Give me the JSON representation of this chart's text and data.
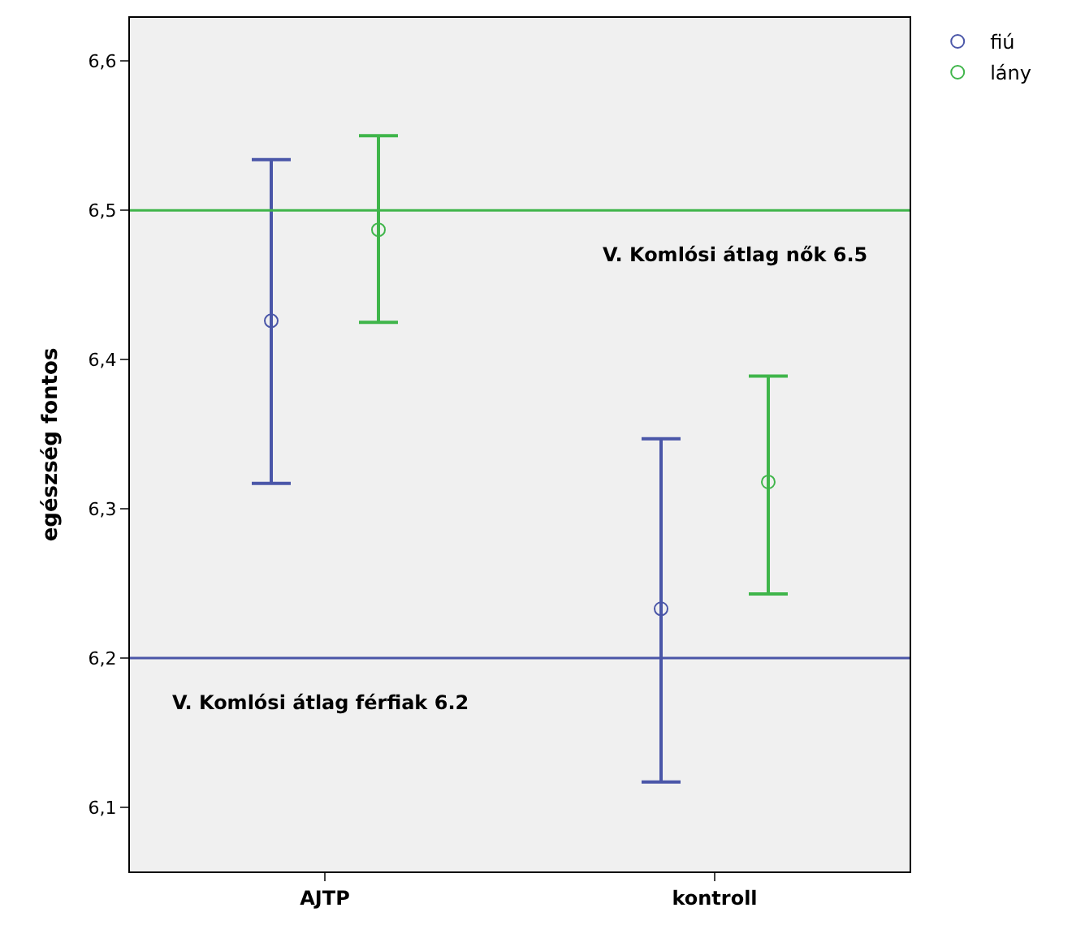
{
  "chart_data": {
    "type": "scatter",
    "ylabel": "egészség fontos",
    "categories": [
      "AJTP",
      "kontroll"
    ],
    "series": [
      {
        "name": "fiú",
        "color": "#4a56a8",
        "values": [
          6.426,
          6.233
        ],
        "errors": [
          [
            6.317,
            6.534
          ],
          [
            6.117,
            6.347
          ]
        ]
      },
      {
        "name": "lány",
        "color": "#3fb54a",
        "values": [
          6.487,
          6.318
        ],
        "errors": [
          [
            6.425,
            6.55
          ],
          [
            6.243,
            6.389
          ]
        ]
      }
    ],
    "ylim": [
      6.057,
      6.629
    ],
    "yticks": [
      {
        "value": 6.1,
        "label": "6,1"
      },
      {
        "value": 6.2,
        "label": "6,2"
      },
      {
        "value": 6.3,
        "label": "6,3"
      },
      {
        "value": 6.4,
        "label": "6,4"
      },
      {
        "value": 6.5,
        "label": "6,5"
      },
      {
        "value": 6.6,
        "label": "6,6"
      }
    ],
    "ref_lines": [
      {
        "axis": "y",
        "value": 6.5,
        "label": "V. Komlósi átlag nők 6.5",
        "color": "#3fb54a"
      },
      {
        "axis": "y",
        "value": 6.2,
        "label": "V. Komlósi átlag férfiak 6.2",
        "color": "#4a56a8"
      }
    ],
    "marker": "circle",
    "grid": false,
    "legend": "top right"
  }
}
